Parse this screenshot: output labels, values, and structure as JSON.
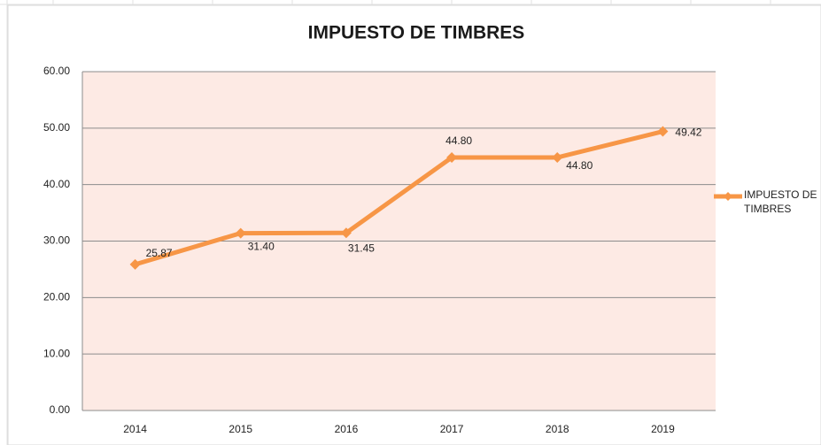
{
  "chart_data": {
    "type": "line",
    "title": "IMPUESTO DE TIMBRES",
    "categories": [
      "2014",
      "2015",
      "2016",
      "2017",
      "2018",
      "2019"
    ],
    "series": [
      {
        "name": "IMPUESTO DE TIMBRES",
        "color": "#f79646",
        "values": [
          25.87,
          31.4,
          31.45,
          44.8,
          44.8,
          49.42
        ],
        "value_labels": [
          "25.87",
          "31.40",
          "31.45",
          "44.80",
          "44.80",
          "49.42"
        ]
      }
    ],
    "ylim": [
      0,
      60
    ],
    "yticks": [
      {
        "value": 0,
        "label": "0.00"
      },
      {
        "value": 10,
        "label": "10.00"
      },
      {
        "value": 20,
        "label": "20.00"
      },
      {
        "value": 30,
        "label": "30.00"
      },
      {
        "value": 40,
        "label": "40.00"
      },
      {
        "value": 50,
        "label": "50.00"
      },
      {
        "value": 60,
        "label": "60.00"
      }
    ],
    "grid": true,
    "legend": "right",
    "plot_background": "#fdeae4"
  }
}
